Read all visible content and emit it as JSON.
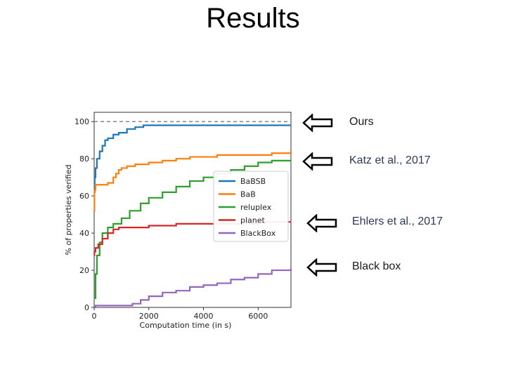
{
  "slide": {
    "title": "Results"
  },
  "annotations": [
    {
      "text": "Ours",
      "color": "#1a1a1a"
    },
    {
      "text": "Katz et al., 2017",
      "color": "#2b3a57"
    },
    {
      "text": "Ehlers et al., 2017",
      "color": "#2b3a57"
    },
    {
      "text": "Black box",
      "color": "#1a1a1a"
    }
  ],
  "chart_data": {
    "type": "line",
    "title": "",
    "xlabel": "Computation time (in s)",
    "ylabel": "% of properties verified",
    "xlim": [
      0,
      7200
    ],
    "ylim": [
      0,
      105
    ],
    "xticks": [
      0,
      2000,
      4000,
      6000
    ],
    "yticks": [
      0,
      20,
      40,
      60,
      80,
      100
    ],
    "grid": false,
    "legend_position": "center-right",
    "reference_line": {
      "y": 100,
      "style": "dashed",
      "color": "#888888"
    },
    "series": [
      {
        "name": "BaBSB",
        "color": "#1f77b4",
        "x": [
          0,
          20,
          50,
          100,
          200,
          300,
          400,
          500,
          700,
          900,
          1200,
          1500,
          1800,
          2500,
          3500,
          5000,
          7200
        ],
        "y": [
          62,
          70,
          75,
          80,
          84,
          87,
          90,
          91,
          93,
          94,
          96,
          97,
          98,
          98,
          98,
          98,
          98
        ]
      },
      {
        "name": "BaB",
        "color": "#ff7f0e",
        "x": [
          0,
          10,
          50,
          200,
          500,
          700,
          800,
          900,
          1000,
          1200,
          1500,
          2000,
          2500,
          3000,
          3500,
          4500,
          5500,
          6500,
          7200
        ],
        "y": [
          52,
          63,
          66,
          66,
          67,
          70,
          72,
          74,
          75,
          76,
          77,
          78,
          79,
          80,
          81,
          82,
          82,
          83,
          84
        ]
      },
      {
        "name": "reluplex",
        "color": "#2ca02c",
        "x": [
          0,
          50,
          100,
          200,
          300,
          500,
          700,
          1000,
          1300,
          1700,
          2000,
          2500,
          3000,
          3500,
          4000,
          4500,
          5000,
          5500,
          6000,
          6500,
          7200
        ],
        "y": [
          5,
          18,
          28,
          35,
          40,
          43,
          45,
          48,
          52,
          56,
          59,
          62,
          65,
          68,
          70,
          72,
          74,
          76,
          78,
          79,
          79
        ]
      },
      {
        "name": "planet",
        "color": "#d62728",
        "x": [
          0,
          10,
          50,
          150,
          300,
          500,
          700,
          900,
          1200,
          2000,
          3000,
          4000,
          6000,
          7200
        ],
        "y": [
          28,
          30,
          32,
          34,
          37,
          40,
          42,
          43,
          43,
          44,
          45,
          45,
          46,
          46
        ]
      },
      {
        "name": "BlackBox",
        "color": "#9467bd",
        "x": [
          0,
          50,
          500,
          800,
          1400,
          1700,
          2000,
          2500,
          3000,
          3500,
          4000,
          4500,
          5000,
          5500,
          6000,
          6500,
          7200
        ],
        "y": [
          0,
          1,
          1,
          1,
          2,
          4,
          6,
          8,
          9,
          11,
          12,
          13,
          15,
          16,
          18,
          20,
          21
        ]
      }
    ]
  }
}
